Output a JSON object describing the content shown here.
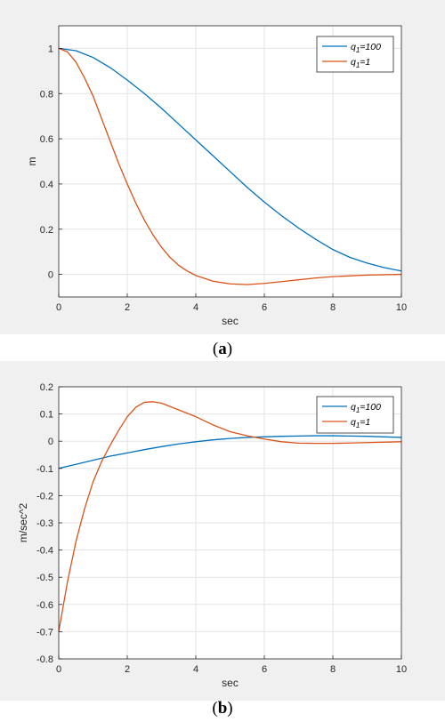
{
  "chart_data": [
    {
      "type": "line",
      "caption_letter": "a",
      "xlabel": "sec",
      "ylabel": "m",
      "xlim": [
        0,
        10
      ],
      "ylim": [
        -0.1,
        1.1
      ],
      "xticks": [
        0,
        2,
        4,
        6,
        8,
        10
      ],
      "yticks": [
        0,
        0.2,
        0.4,
        0.6,
        0.8,
        1
      ],
      "xtick_labels": [
        "0",
        "2",
        "4",
        "6",
        "8",
        "10"
      ],
      "ytick_labels": [
        "0",
        "0.2",
        "0.4",
        "0.6",
        "0.8",
        "1"
      ],
      "grid": true,
      "legend_position": "top-right",
      "series": [
        {
          "name_main": "q",
          "name_sub": "1",
          "name_suffix": "=100",
          "color": "#0072bd",
          "x": [
            0,
            0.5,
            1,
            1.5,
            2,
            2.5,
            3,
            3.5,
            4,
            4.5,
            5,
            5.5,
            6,
            6.5,
            7,
            7.5,
            8,
            8.5,
            9,
            9.5,
            10
          ],
          "y": [
            1.0,
            0.99,
            0.96,
            0.915,
            0.86,
            0.8,
            0.735,
            0.665,
            0.595,
            0.525,
            0.455,
            0.385,
            0.32,
            0.26,
            0.205,
            0.155,
            0.11,
            0.075,
            0.05,
            0.03,
            0.015
          ]
        },
        {
          "name_main": "q",
          "name_sub": "1",
          "name_suffix": "=1",
          "color": "#d95319",
          "x": [
            0,
            0.25,
            0.5,
            0.75,
            1,
            1.25,
            1.5,
            1.75,
            2,
            2.25,
            2.5,
            2.75,
            3,
            3.25,
            3.5,
            3.75,
            4,
            4.5,
            5,
            5.5,
            6,
            6.5,
            7,
            7.5,
            8,
            9,
            10
          ],
          "y": [
            1.0,
            0.985,
            0.94,
            0.87,
            0.79,
            0.69,
            0.59,
            0.49,
            0.4,
            0.315,
            0.24,
            0.175,
            0.12,
            0.075,
            0.04,
            0.015,
            -0.005,
            -0.03,
            -0.042,
            -0.045,
            -0.04,
            -0.032,
            -0.024,
            -0.016,
            -0.01,
            -0.003,
            0.0
          ]
        }
      ]
    },
    {
      "type": "line",
      "caption_letter": "b",
      "xlabel": "sec",
      "ylabel": "m/sec^2",
      "xlim": [
        0,
        10
      ],
      "ylim": [
        -0.8,
        0.2
      ],
      "xticks": [
        0,
        2,
        4,
        6,
        8,
        10
      ],
      "yticks": [
        -0.8,
        -0.7,
        -0.6,
        -0.5,
        -0.4,
        -0.3,
        -0.2,
        -0.1,
        0,
        0.1,
        0.2
      ],
      "xtick_labels": [
        "0",
        "2",
        "4",
        "6",
        "8",
        "10"
      ],
      "ytick_labels": [
        "-0.8",
        "-0.7",
        "-0.6",
        "-0.5",
        "-0.4",
        "-0.3",
        "-0.2",
        "-0.1",
        "0",
        "0.1",
        "0.2"
      ],
      "grid": true,
      "legend_position": "top-right",
      "series": [
        {
          "name_main": "q",
          "name_sub": "1",
          "name_suffix": "=100",
          "color": "#0072bd",
          "x": [
            0,
            0.5,
            1,
            1.5,
            2,
            2.5,
            3,
            3.5,
            4,
            4.5,
            5,
            5.5,
            6,
            6.5,
            7,
            7.5,
            8,
            8.5,
            9,
            9.5,
            10
          ],
          "y": [
            -0.1,
            -0.085,
            -0.07,
            -0.055,
            -0.043,
            -0.031,
            -0.02,
            -0.01,
            -0.002,
            0.005,
            0.01,
            0.014,
            0.016,
            0.018,
            0.019,
            0.02,
            0.02,
            0.019,
            0.018,
            0.016,
            0.014
          ]
        },
        {
          "name_main": "q",
          "name_sub": "1",
          "name_suffix": "=1",
          "color": "#d95319",
          "x": [
            0,
            0.25,
            0.5,
            0.75,
            1,
            1.25,
            1.5,
            1.75,
            2,
            2.25,
            2.5,
            2.75,
            3,
            3.5,
            4,
            4.5,
            5,
            5.5,
            6,
            6.5,
            7,
            7.5,
            8,
            9,
            10
          ],
          "y": [
            -0.7,
            -0.52,
            -0.37,
            -0.25,
            -0.15,
            -0.075,
            -0.015,
            0.04,
            0.09,
            0.125,
            0.143,
            0.145,
            0.14,
            0.115,
            0.09,
            0.06,
            0.035,
            0.02,
            0.008,
            -0.002,
            -0.007,
            -0.008,
            -0.008,
            -0.005,
            -0.002
          ]
        }
      ]
    }
  ]
}
